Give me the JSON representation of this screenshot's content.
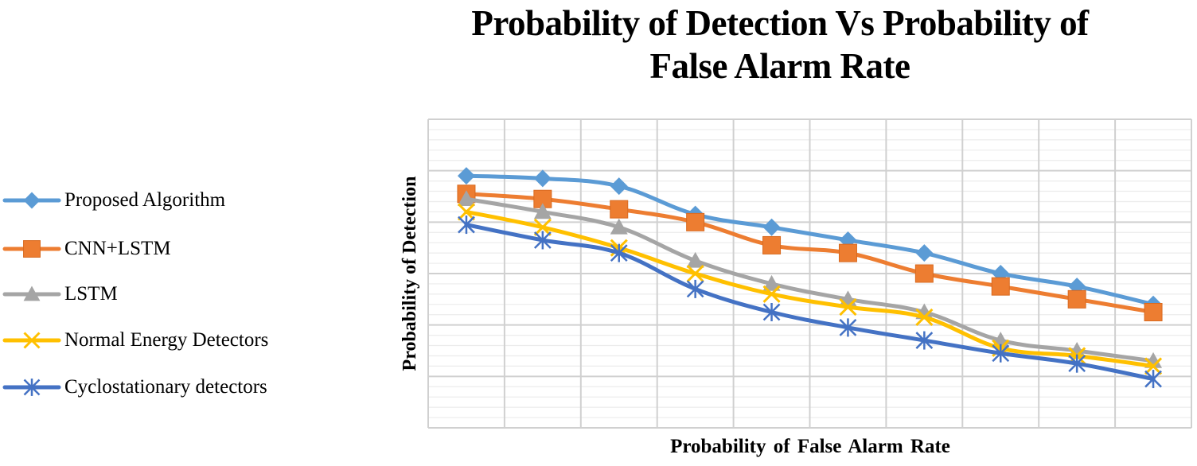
{
  "title": {
    "line1": "Probability of Detection Vs Probability of",
    "line2": "False Alarm Rate"
  },
  "axes": {
    "x_label": "Probability  of False Alarm Rate",
    "y_label": "Probability  of Detection"
  },
  "legend": {
    "items": [
      {
        "label": "Proposed Algorithm",
        "color": "#5B9BD5",
        "marker": "diamond"
      },
      {
        "label": "CNN+LSTM",
        "color": "#ED7D31",
        "marker": "square"
      },
      {
        "label": "LSTM",
        "color": "#A5A5A5",
        "marker": "triangle"
      },
      {
        "label": "Normal Energy Detectors",
        "color": "#FFC000",
        "marker": "x"
      },
      {
        "label": "Cyclostationary detectors",
        "color": "#4472C4",
        "marker": "asterisk"
      }
    ]
  },
  "chart_data": {
    "type": "line",
    "title": "Probability of Detection Vs Probability of False Alarm Rate",
    "xlabel": "Probability  of False Alarm Rate",
    "ylabel": "Probability  of Detection",
    "x": [
      1,
      2,
      3,
      4,
      5,
      6,
      7,
      8,
      9,
      10
    ],
    "x_tick_labels_shown": false,
    "y_tick_labels_shown": false,
    "value_units": "relative gridline units (0 = plot bottom, 6 = plot top; no numeric ticks shown)",
    "ylim": [
      0,
      6
    ],
    "grid": {
      "major_rows": 6,
      "minor_per_major": 5,
      "columns": 10
    },
    "legend_position": "left",
    "series": [
      {
        "name": "Proposed Algorithm",
        "color": "#5B9BD5",
        "marker": "diamond",
        "values": [
          4.9,
          4.85,
          4.7,
          4.15,
          3.9,
          3.65,
          3.4,
          3.0,
          2.75,
          2.4
        ]
      },
      {
        "name": "CNN+LSTM",
        "color": "#ED7D31",
        "marker": "square",
        "values": [
          4.55,
          4.45,
          4.25,
          4.0,
          3.55,
          3.4,
          3.0,
          2.75,
          2.5,
          2.25
        ]
      },
      {
        "name": "LSTM",
        "color": "#A5A5A5",
        "marker": "triangle",
        "values": [
          4.45,
          4.2,
          3.9,
          3.25,
          2.8,
          2.5,
          2.25,
          1.7,
          1.5,
          1.3
        ]
      },
      {
        "name": "Normal Energy Detectors",
        "color": "#FFC000",
        "marker": "x",
        "values": [
          4.2,
          3.9,
          3.5,
          3.0,
          2.6,
          2.35,
          2.15,
          1.55,
          1.4,
          1.2
        ]
      },
      {
        "name": "Cyclostationary detectors",
        "color": "#4472C4",
        "marker": "asterisk",
        "values": [
          3.95,
          3.65,
          3.4,
          2.7,
          2.25,
          1.95,
          1.7,
          1.45,
          1.25,
          0.95
        ]
      }
    ]
  }
}
